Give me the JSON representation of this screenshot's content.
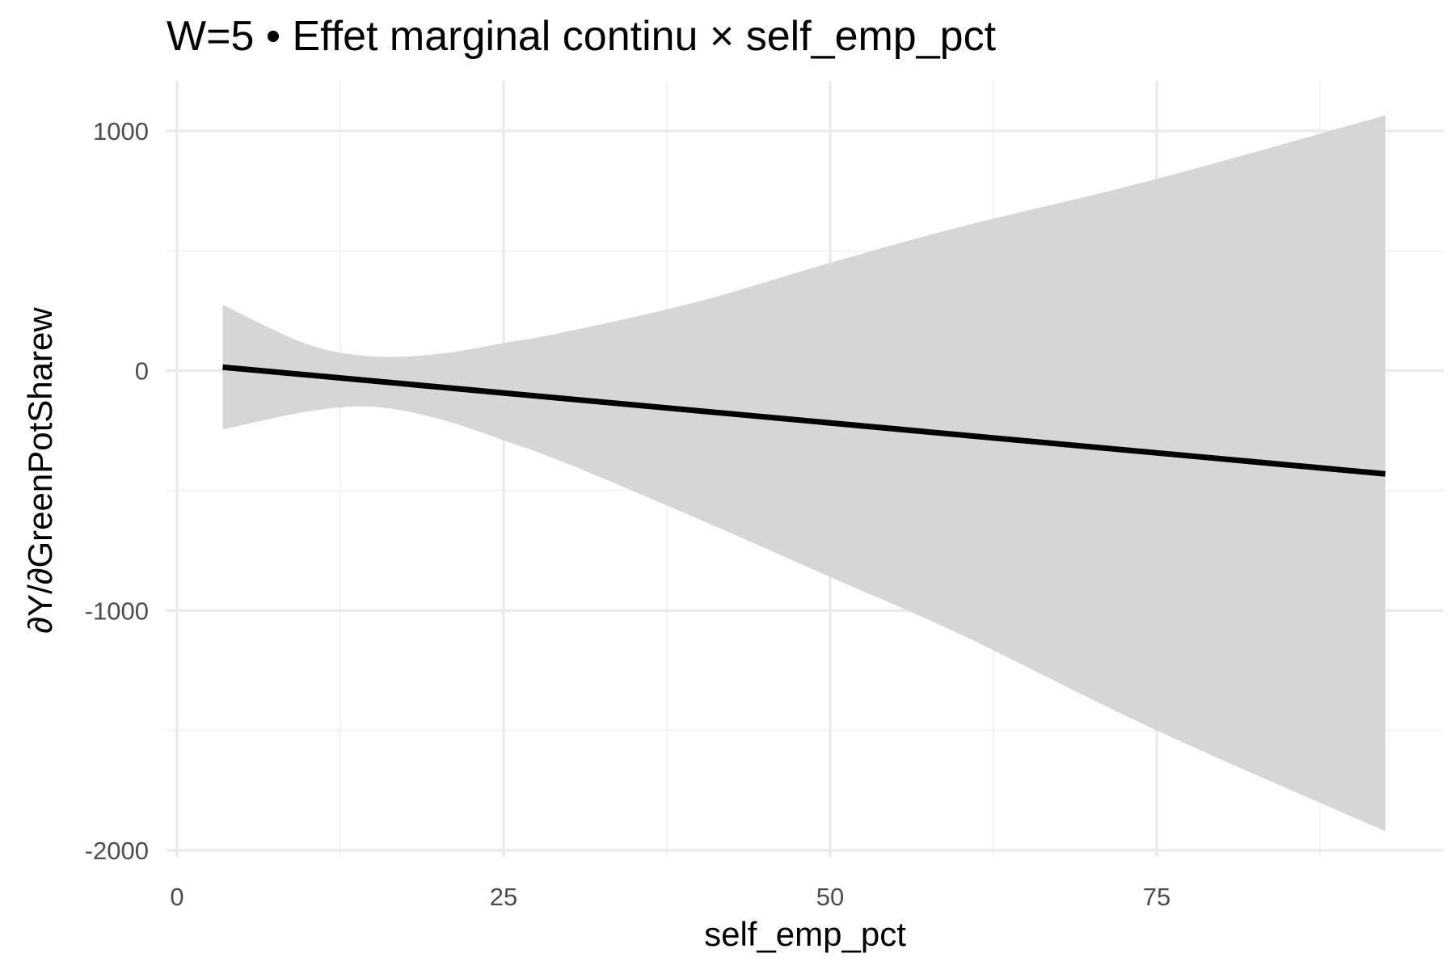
{
  "chart_data": {
    "type": "line",
    "title": "W=5 • Effet marginal continu × self_emp_pct",
    "xlabel": "self_emp_pct",
    "ylabel": "∂Y/∂GreenPotSharew",
    "xlim": [
      0,
      97.5
    ],
    "ylim": [
      -2000,
      1000
    ],
    "x_ticks": [
      0,
      25,
      50,
      75
    ],
    "x_tick_labels": [
      "0",
      "25",
      "50",
      "75"
    ],
    "y_ticks": [
      1000,
      0,
      -1000,
      -2000
    ],
    "y_tick_labels": [
      "1000",
      "0",
      "-1000",
      "-2000"
    ],
    "grid": true,
    "legend": "none",
    "colors": {
      "line": "#000000",
      "ribbon": "#d6d6d6",
      "grid_major": "#ebebeb",
      "grid_minor": "#f3f3f3"
    },
    "series": [
      {
        "x": [
          3.5,
          92.5
        ],
        "y": [
          15,
          -430
        ]
      }
    ],
    "confidence_band": {
      "x": [
        3.5,
        10,
        15,
        20,
        25,
        30,
        40,
        50,
        60,
        75,
        92.5
      ],
      "upper": [
        275,
        110,
        60,
        70,
        115,
        165,
        290,
        450,
        600,
        800,
        1065
      ],
      "lower": [
        -245,
        -170,
        -150,
        -200,
        -290,
        -390,
        -620,
        -860,
        -1100,
        -1500,
        -1920
      ]
    }
  }
}
